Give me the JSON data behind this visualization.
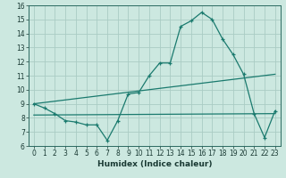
{
  "title": "",
  "xlabel": "Humidex (Indice chaleur)",
  "ylabel": "",
  "background_color": "#cce8e0",
  "grid_color": "#aaccC4",
  "line_color": "#1a7a6e",
  "xlim": [
    -0.5,
    23.5
  ],
  "ylim": [
    6,
    16
  ],
  "xticks": [
    0,
    1,
    2,
    3,
    4,
    5,
    6,
    7,
    8,
    9,
    10,
    11,
    12,
    13,
    14,
    15,
    16,
    17,
    18,
    19,
    20,
    21,
    22,
    23
  ],
  "yticks": [
    6,
    7,
    8,
    9,
    10,
    11,
    12,
    13,
    14,
    15,
    16
  ],
  "line1_x": [
    0,
    1,
    2,
    3,
    4,
    5,
    6,
    7,
    8,
    9,
    10,
    11,
    12,
    13,
    14,
    15,
    16,
    17,
    18,
    19,
    20,
    21,
    22,
    23
  ],
  "line1_y": [
    9.0,
    8.7,
    8.3,
    7.8,
    7.7,
    7.5,
    7.5,
    6.4,
    7.8,
    9.7,
    9.8,
    11.0,
    11.9,
    11.9,
    14.5,
    14.9,
    15.5,
    15.0,
    13.6,
    12.5,
    11.1,
    8.3,
    6.6,
    8.5
  ],
  "line2_x": [
    0,
    23
  ],
  "line2_y": [
    9.0,
    11.1
  ],
  "line3_x": [
    0,
    23
  ],
  "line3_y": [
    8.2,
    8.3
  ],
  "xlabel_fontsize": 6.5,
  "xlabel_color": "#1a3a34",
  "tick_labelsize": 5.5,
  "tick_color": "#1a3a34"
}
